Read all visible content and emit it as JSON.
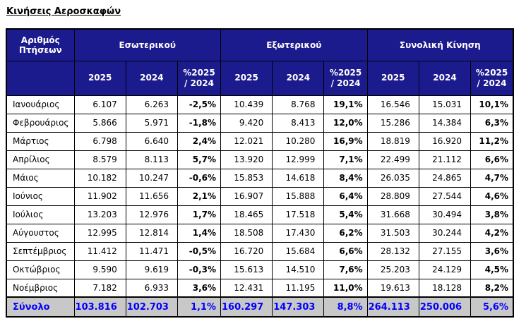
{
  "title": "Κινήσεις Αεροσκαφών",
  "colors": {
    "header_bg": "#1b1b8e",
    "header_text": "#ffffff",
    "total_row_bg": "#c8c8c8",
    "total_row_text": "#0000ff",
    "border": "#000000"
  },
  "chart_data": {
    "type": "table",
    "corner_header": "Αριθμός\nΠτήσεων",
    "group_headers": [
      "Εσωτερικού",
      "Εξωτερικού",
      "Συνολική Κίνηση"
    ],
    "sub_headers": [
      "2025",
      "2024",
      "%2025\n/ 2024"
    ],
    "rows": [
      {
        "label": "Ιανουάριος",
        "values": [
          "6.107",
          "6.263",
          "-2,5%",
          "10.439",
          "8.768",
          "19,1%",
          "16.546",
          "15.031",
          "10,1%"
        ]
      },
      {
        "label": "Φεβρουάριος",
        "values": [
          "5.866",
          "5.971",
          "-1,8%",
          "9.420",
          "8.413",
          "12,0%",
          "15.286",
          "14.384",
          "6,3%"
        ]
      },
      {
        "label": "Μάρτιος",
        "values": [
          "6.798",
          "6.640",
          "2,4%",
          "12.021",
          "10.280",
          "16,9%",
          "18.819",
          "16.920",
          "11,2%"
        ]
      },
      {
        "label": "Απρίλιος",
        "values": [
          "8.579",
          "8.113",
          "5,7%",
          "13.920",
          "12.999",
          "7,1%",
          "22.499",
          "21.112",
          "6,6%"
        ]
      },
      {
        "label": "Μάιος",
        "values": [
          "10.182",
          "10.247",
          "-0,6%",
          "15.853",
          "14.618",
          "8,4%",
          "26.035",
          "24.865",
          "4,7%"
        ]
      },
      {
        "label": "Ιούνιος",
        "values": [
          "11.902",
          "11.656",
          "2,1%",
          "16.907",
          "15.888",
          "6,4%",
          "28.809",
          "27.544",
          "4,6%"
        ]
      },
      {
        "label": "Ιούλιος",
        "values": [
          "13.203",
          "12.976",
          "1,7%",
          "18.465",
          "17.518",
          "5,4%",
          "31.668",
          "30.494",
          "3,8%"
        ]
      },
      {
        "label": "Αύγουστος",
        "values": [
          "12.995",
          "12.814",
          "1,4%",
          "18.508",
          "17.430",
          "6,2%",
          "31.503",
          "30.244",
          "4,2%"
        ]
      },
      {
        "label": "Σεπτέμβριος",
        "values": [
          "11.412",
          "11.471",
          "-0,5%",
          "16.720",
          "15.684",
          "6,6%",
          "28.132",
          "27.155",
          "3,6%"
        ]
      },
      {
        "label": "Οκτώβριος",
        "values": [
          "9.590",
          "9.619",
          "-0,3%",
          "15.613",
          "14.510",
          "7,6%",
          "25.203",
          "24.129",
          "4,5%"
        ]
      },
      {
        "label": "Νοέμβριος",
        "values": [
          "7.182",
          "6.933",
          "3,6%",
          "12.431",
          "11.195",
          "11,0%",
          "19.613",
          "18.128",
          "8,2%"
        ]
      }
    ],
    "total": {
      "label": "Σύνολο",
      "values": [
        "103.816",
        "102.703",
        "1,1%",
        "160.297",
        "147.303",
        "8,8%",
        "264.113",
        "250.006",
        "5,6%"
      ]
    }
  }
}
